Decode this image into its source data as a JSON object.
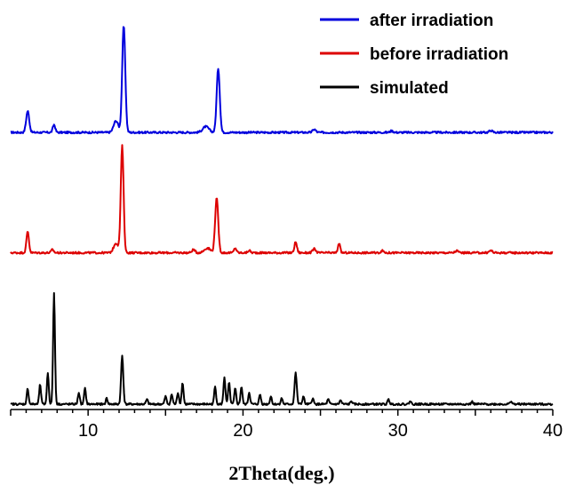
{
  "chart_data": {
    "type": "line",
    "title": "",
    "xlabel": "2Theta(deg.)",
    "ylabel": "",
    "xlim": [
      5,
      40
    ],
    "ylim": [
      0,
      10
    ],
    "xticks": [
      10,
      20,
      30,
      40
    ],
    "x_tick_labels": [
      "10",
      "20",
      "30",
      "40"
    ],
    "grid": false,
    "legend_position": "top-right",
    "series": [
      {
        "name": "after irradiation",
        "color": "#0000dd",
        "offset": 7.0,
        "baseline": 0.0,
        "peaks": [
          {
            "x": 6.1,
            "h": 0.55,
            "w": 0.1
          },
          {
            "x": 7.8,
            "h": 0.2,
            "w": 0.08
          },
          {
            "x": 11.8,
            "h": 0.3,
            "w": 0.15
          },
          {
            "x": 12.3,
            "h": 2.75,
            "w": 0.1
          },
          {
            "x": 17.6,
            "h": 0.15,
            "w": 0.2
          },
          {
            "x": 18.4,
            "h": 1.65,
            "w": 0.1
          },
          {
            "x": 24.6,
            "h": 0.08,
            "w": 0.1
          },
          {
            "x": 29.6,
            "h": 0.04,
            "w": 0.1
          },
          {
            "x": 36.0,
            "h": 0.05,
            "w": 0.1
          }
        ]
      },
      {
        "name": "before irradiation",
        "color": "#dd0000",
        "offset": 3.9,
        "baseline": 0.0,
        "peaks": [
          {
            "x": 6.1,
            "h": 0.55,
            "w": 0.08
          },
          {
            "x": 7.7,
            "h": 0.08,
            "w": 0.08
          },
          {
            "x": 11.8,
            "h": 0.25,
            "w": 0.15
          },
          {
            "x": 12.2,
            "h": 2.75,
            "w": 0.09
          },
          {
            "x": 16.8,
            "h": 0.08,
            "w": 0.1
          },
          {
            "x": 17.7,
            "h": 0.12,
            "w": 0.2
          },
          {
            "x": 18.3,
            "h": 1.4,
            "w": 0.1
          },
          {
            "x": 19.5,
            "h": 0.12,
            "w": 0.08
          },
          {
            "x": 20.4,
            "h": 0.06,
            "w": 0.08
          },
          {
            "x": 23.4,
            "h": 0.28,
            "w": 0.08
          },
          {
            "x": 24.6,
            "h": 0.1,
            "w": 0.1
          },
          {
            "x": 26.2,
            "h": 0.25,
            "w": 0.07
          },
          {
            "x": 29.0,
            "h": 0.05,
            "w": 0.1
          },
          {
            "x": 33.8,
            "h": 0.05,
            "w": 0.1
          },
          {
            "x": 36.0,
            "h": 0.06,
            "w": 0.1
          }
        ]
      },
      {
        "name": "simulated",
        "color": "#000000",
        "offset": 0.0,
        "baseline": 0.0,
        "peaks": [
          {
            "x": 6.1,
            "h": 0.4,
            "w": 0.06
          },
          {
            "x": 6.9,
            "h": 0.5,
            "w": 0.06
          },
          {
            "x": 7.4,
            "h": 0.8,
            "w": 0.06
          },
          {
            "x": 7.8,
            "h": 2.85,
            "w": 0.06
          },
          {
            "x": 9.4,
            "h": 0.3,
            "w": 0.06
          },
          {
            "x": 9.8,
            "h": 0.4,
            "w": 0.06
          },
          {
            "x": 11.2,
            "h": 0.15,
            "w": 0.06
          },
          {
            "x": 12.2,
            "h": 1.25,
            "w": 0.07
          },
          {
            "x": 13.8,
            "h": 0.12,
            "w": 0.06
          },
          {
            "x": 15.0,
            "h": 0.2,
            "w": 0.06
          },
          {
            "x": 15.4,
            "h": 0.25,
            "w": 0.06
          },
          {
            "x": 15.8,
            "h": 0.3,
            "w": 0.06
          },
          {
            "x": 16.1,
            "h": 0.55,
            "w": 0.06
          },
          {
            "x": 18.2,
            "h": 0.45,
            "w": 0.06
          },
          {
            "x": 18.8,
            "h": 0.7,
            "w": 0.06
          },
          {
            "x": 19.1,
            "h": 0.55,
            "w": 0.06
          },
          {
            "x": 19.5,
            "h": 0.4,
            "w": 0.06
          },
          {
            "x": 19.9,
            "h": 0.45,
            "w": 0.06
          },
          {
            "x": 20.4,
            "h": 0.3,
            "w": 0.06
          },
          {
            "x": 21.1,
            "h": 0.25,
            "w": 0.06
          },
          {
            "x": 21.8,
            "h": 0.2,
            "w": 0.06
          },
          {
            "x": 22.5,
            "h": 0.15,
            "w": 0.06
          },
          {
            "x": 23.4,
            "h": 0.8,
            "w": 0.07
          },
          {
            "x": 23.9,
            "h": 0.2,
            "w": 0.06
          },
          {
            "x": 24.5,
            "h": 0.15,
            "w": 0.06
          },
          {
            "x": 25.5,
            "h": 0.12,
            "w": 0.06
          },
          {
            "x": 26.3,
            "h": 0.1,
            "w": 0.06
          },
          {
            "x": 27.0,
            "h": 0.08,
            "w": 0.06
          },
          {
            "x": 29.4,
            "h": 0.12,
            "w": 0.06
          },
          {
            "x": 30.8,
            "h": 0.08,
            "w": 0.06
          },
          {
            "x": 34.8,
            "h": 0.06,
            "w": 0.06
          },
          {
            "x": 37.3,
            "h": 0.08,
            "w": 0.06
          }
        ]
      }
    ]
  }
}
